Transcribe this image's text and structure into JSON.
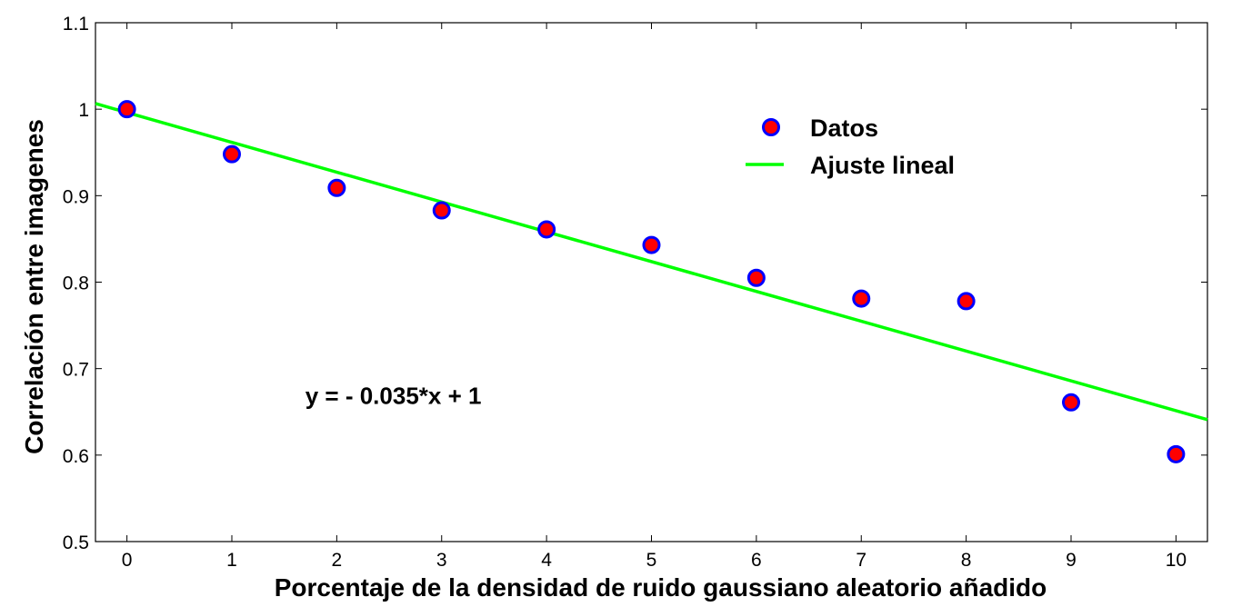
{
  "chart_data": {
    "type": "scatter",
    "xlabel": "Porcentaje de la densidad de ruido gaussiano aleatorio añadido",
    "ylabel": "Correlación entre imagenes",
    "xlim": [
      -0.3,
      10.3
    ],
    "ylim": [
      0.5,
      1.1
    ],
    "x_ticks": [
      0,
      1,
      2,
      3,
      4,
      5,
      6,
      7,
      8,
      9,
      10
    ],
    "y_ticks": [
      0.5,
      0.6,
      0.7,
      0.8,
      0.9,
      1,
      1.1
    ],
    "x_tick_labels": [
      "0",
      "1",
      "2",
      "3",
      "4",
      "5",
      "6",
      "7",
      "8",
      "9",
      "10"
    ],
    "y_tick_labels": [
      "0.5",
      "0.6",
      "0.7",
      "0.8",
      "0.9",
      "1",
      "1.1"
    ],
    "grid": false,
    "legend_position": "top-right",
    "series": [
      {
        "name": "Datos",
        "kind": "scatter",
        "marker_fill": "#ff0000",
        "marker_edge": "#0000ff",
        "x": [
          0,
          1,
          2,
          3,
          4,
          5,
          6,
          7,
          8,
          9,
          10
        ],
        "y": [
          1.0,
          0.948,
          0.909,
          0.883,
          0.861,
          0.843,
          0.805,
          0.781,
          0.778,
          0.661,
          0.601
        ]
      },
      {
        "name": "Ajuste lineal",
        "kind": "line",
        "color": "#00ff00",
        "x": [
          -0.3,
          10.3
        ],
        "y": [
          1.0065,
          0.641
        ]
      }
    ],
    "annotations": [
      {
        "text": "y = - 0.035*x + 1",
        "x": 1.7,
        "y": 0.675
      }
    ]
  }
}
